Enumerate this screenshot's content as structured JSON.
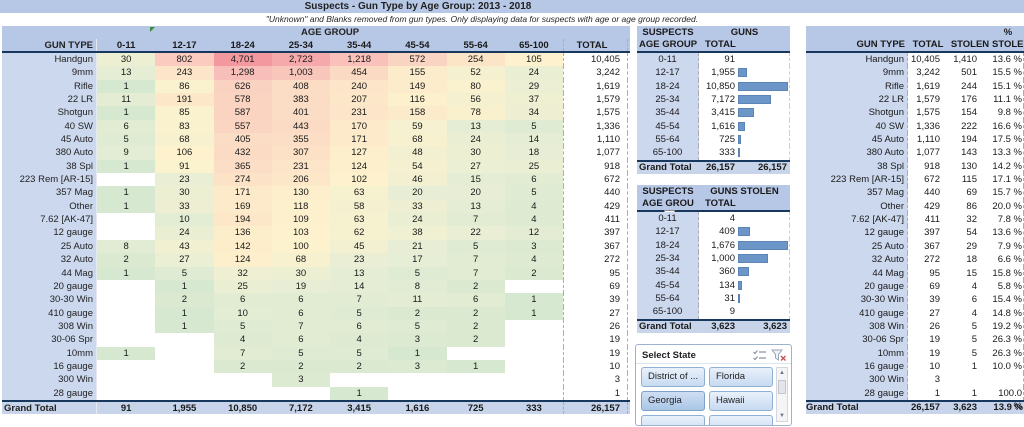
{
  "title": "Suspects - Gun Type by Age Group: 2013 - 2018",
  "subtitle": "\"Unknown\" and Blanks removed from gun types. Only displaying data for suspects with age or age group recorded.",
  "age_groups": [
    "0-11",
    "12-17",
    "18-24",
    "25-34",
    "35-44",
    "45-54",
    "55-64",
    "65-100"
  ],
  "main_table": {
    "header_group": "AGE GROUP",
    "col_label": "GUN TYPE",
    "col_total": "TOTAL",
    "grand_total_label": "Grand Total",
    "rows": [
      {
        "label": "Handgun",
        "values": [
          30,
          802,
          4701,
          2723,
          1218,
          572,
          254,
          105
        ],
        "total": 10405
      },
      {
        "label": "9mm",
        "values": [
          13,
          243,
          1298,
          1003,
          454,
          155,
          52,
          24
        ],
        "total": 3242
      },
      {
        "label": "Rifle",
        "values": [
          1,
          86,
          626,
          408,
          240,
          149,
          80,
          29
        ],
        "total": 1619
      },
      {
        "label": "22 LR",
        "values": [
          11,
          191,
          578,
          383,
          207,
          116,
          56,
          37
        ],
        "total": 1579
      },
      {
        "label": "Shotgun",
        "values": [
          1,
          85,
          587,
          401,
          231,
          158,
          78,
          34
        ],
        "total": 1575
      },
      {
        "label": "40 SW",
        "values": [
          6,
          83,
          557,
          443,
          170,
          59,
          13,
          5
        ],
        "total": 1336
      },
      {
        "label": "45 Auto",
        "values": [
          5,
          68,
          405,
          355,
          171,
          68,
          24,
          14
        ],
        "total": 1110
      },
      {
        "label": "380 Auto",
        "values": [
          9,
          106,
          432,
          307,
          127,
          48,
          30,
          18
        ],
        "total": 1077
      },
      {
        "label": "38 Spl",
        "values": [
          1,
          91,
          365,
          231,
          124,
          54,
          27,
          25
        ],
        "total": 918
      },
      {
        "label": "223 Rem [AR-15]",
        "values": [
          null,
          23,
          274,
          206,
          102,
          46,
          15,
          6
        ],
        "total": 672
      },
      {
        "label": "357 Mag",
        "values": [
          1,
          30,
          171,
          130,
          63,
          20,
          20,
          5
        ],
        "total": 440
      },
      {
        "label": "Other",
        "values": [
          1,
          33,
          169,
          118,
          58,
          33,
          13,
          4
        ],
        "total": 429
      },
      {
        "label": "7.62 [AK-47]",
        "values": [
          null,
          10,
          194,
          109,
          63,
          24,
          7,
          4
        ],
        "total": 411
      },
      {
        "label": "12 gauge",
        "values": [
          null,
          24,
          136,
          103,
          62,
          38,
          22,
          12
        ],
        "total": 397
      },
      {
        "label": "25 Auto",
        "values": [
          8,
          43,
          142,
          100,
          45,
          21,
          5,
          3
        ],
        "total": 367
      },
      {
        "label": "32 Auto",
        "values": [
          2,
          27,
          124,
          68,
          23,
          17,
          7,
          4
        ],
        "total": 272
      },
      {
        "label": "44 Mag",
        "values": [
          1,
          5,
          32,
          30,
          13,
          5,
          7,
          2
        ],
        "total": 95
      },
      {
        "label": "20 gauge",
        "values": [
          null,
          1,
          25,
          19,
          14,
          8,
          2,
          null
        ],
        "total": 69
      },
      {
        "label": "30-30 Win",
        "values": [
          null,
          2,
          6,
          6,
          7,
          11,
          6,
          1
        ],
        "total": 39
      },
      {
        "label": "410 gauge",
        "values": [
          null,
          1,
          10,
          6,
          5,
          2,
          2,
          1
        ],
        "total": 27
      },
      {
        "label": "308 Win",
        "values": [
          null,
          1,
          5,
          7,
          6,
          5,
          2,
          null
        ],
        "total": 26
      },
      {
        "label": "30-06 Spr",
        "values": [
          null,
          null,
          4,
          6,
          4,
          3,
          2,
          null
        ],
        "total": 19
      },
      {
        "label": "10mm",
        "values": [
          1,
          null,
          7,
          5,
          5,
          1,
          null,
          null
        ],
        "total": 19
      },
      {
        "label": "16 gauge",
        "values": [
          null,
          null,
          2,
          2,
          2,
          3,
          1,
          null
        ],
        "total": 10
      },
      {
        "label": "300 Win",
        "values": [
          null,
          null,
          null,
          3,
          null,
          null,
          null,
          null
        ],
        "total": 3
      },
      {
        "label": "28 gauge",
        "values": [
          null,
          null,
          null,
          null,
          1,
          null,
          null,
          null
        ],
        "total": 1
      }
    ],
    "grand_total": {
      "values": [
        91,
        1955,
        10850,
        7172,
        3415,
        1616,
        725,
        333
      ],
      "total": 26157
    }
  },
  "suspects_guns": {
    "title_left": "SUSPECTS",
    "title_right": "GUNS",
    "col_left": "AGE GROUP",
    "col_right": "TOTAL",
    "rows": [
      {
        "age": "0-11",
        "total": 91
      },
      {
        "age": "12-17",
        "total": 1955
      },
      {
        "age": "18-24",
        "total": 10850
      },
      {
        "age": "25-34",
        "total": 7172
      },
      {
        "age": "35-44",
        "total": 3415
      },
      {
        "age": "45-54",
        "total": 1616
      },
      {
        "age": "55-64",
        "total": 725
      },
      {
        "age": "65-100",
        "total": 333
      }
    ],
    "grand_total_label": "Grand Total",
    "grand_total": 26157,
    "grand_total_right": 26157
  },
  "suspects_guns_stolen": {
    "title_left": "SUSPECTS",
    "title_right": "GUNS STOLEN",
    "col_left": "AGE GROU",
    "col_right": "TOTAL",
    "rows": [
      {
        "age": "0-11",
        "total": 4
      },
      {
        "age": "12-17",
        "total": 409
      },
      {
        "age": "18-24",
        "total": 1676
      },
      {
        "age": "25-34",
        "total": 1000
      },
      {
        "age": "35-44",
        "total": 360
      },
      {
        "age": "45-54",
        "total": 134
      },
      {
        "age": "55-64",
        "total": 31
      },
      {
        "age": "65-100",
        "total": 9
      }
    ],
    "grand_total_label": "Grand Total",
    "grand_total": 3623,
    "grand_total_right": 3623
  },
  "slicer": {
    "title": "Select State",
    "buttons": [
      {
        "label": "District of ...",
        "selected": false
      },
      {
        "label": "Florida",
        "selected": false
      },
      {
        "label": "Georgia",
        "selected": true
      },
      {
        "label": "Hawaii",
        "selected": false
      },
      {
        "label": "",
        "selected": false
      },
      {
        "label": "",
        "selected": false
      }
    ]
  },
  "stolen_table": {
    "pct_header_top": "%",
    "col_label": "GUN TYPE",
    "col_total": "TOTAL",
    "col_stolen": "STOLEN",
    "col_pct": "STOLEN",
    "grand_total": {
      "label": "Grand Total",
      "total": 26157,
      "stolen": 3623,
      "pct": "13.9 %"
    },
    "rows": [
      {
        "label": "Handgun",
        "total": 10405,
        "stolen": 1410,
        "pct": "13.6 %"
      },
      {
        "label": "9mm",
        "total": 3242,
        "stolen": 501,
        "pct": "15.5 %"
      },
      {
        "label": "Rifle",
        "total": 1619,
        "stolen": 244,
        "pct": "15.1 %"
      },
      {
        "label": "22 LR",
        "total": 1579,
        "stolen": 176,
        "pct": "11.1 %"
      },
      {
        "label": "Shotgun",
        "total": 1575,
        "stolen": 154,
        "pct": "9.8 %"
      },
      {
        "label": "40 SW",
        "total": 1336,
        "stolen": 222,
        "pct": "16.6 %"
      },
      {
        "label": "45 Auto",
        "total": 1110,
        "stolen": 194,
        "pct": "17.5 %"
      },
      {
        "label": "380 Auto",
        "total": 1077,
        "stolen": 143,
        "pct": "13.3 %"
      },
      {
        "label": "38 Spl",
        "total": 918,
        "stolen": 130,
        "pct": "14.2 %"
      },
      {
        "label": "223 Rem [AR-15]",
        "total": 672,
        "stolen": 115,
        "pct": "17.1 %"
      },
      {
        "label": "357 Mag",
        "total": 440,
        "stolen": 69,
        "pct": "15.7 %"
      },
      {
        "label": "Other",
        "total": 429,
        "stolen": 86,
        "pct": "20.0 %"
      },
      {
        "label": "7.62 [AK-47]",
        "total": 411,
        "stolen": 32,
        "pct": "7.8 %"
      },
      {
        "label": "12 gauge",
        "total": 397,
        "stolen": 54,
        "pct": "13.6 %"
      },
      {
        "label": "25 Auto",
        "total": 367,
        "stolen": 29,
        "pct": "7.9 %"
      },
      {
        "label": "32 Auto",
        "total": 272,
        "stolen": 18,
        "pct": "6.6 %"
      },
      {
        "label": "44 Mag",
        "total": 95,
        "stolen": 15,
        "pct": "15.8 %"
      },
      {
        "label": "20 gauge",
        "total": 69,
        "stolen": 4,
        "pct": "5.8 %"
      },
      {
        "label": "30-30 Win",
        "total": 39,
        "stolen": 6,
        "pct": "15.4 %"
      },
      {
        "label": "410 gauge",
        "total": 27,
        "stolen": 4,
        "pct": "14.8 %"
      },
      {
        "label": "308 Win",
        "total": 26,
        "stolen": 5,
        "pct": "19.2 %"
      },
      {
        "label": "30-06 Spr",
        "total": 19,
        "stolen": 5,
        "pct": "26.3 %"
      },
      {
        "label": "10mm",
        "total": 19,
        "stolen": 5,
        "pct": "26.3 %"
      },
      {
        "label": "16 gauge",
        "total": 10,
        "stolen": 1,
        "pct": "10.0 %"
      },
      {
        "label": "300 Win",
        "total": 3,
        "stolen": null,
        "pct": ""
      },
      {
        "label": "28 gauge",
        "total": 1,
        "stolen": 1,
        "pct": "100.0 %"
      }
    ]
  },
  "colors": {
    "header_blue": "#b7c7e6",
    "label_blue": "#ccd8ee",
    "grand_total_blue": "#c7d4ea",
    "dark_line": "#17375d",
    "bar_blue": "#6d96c8",
    "heat_min_green": "#d7e8d0",
    "heat_mid_cream": "#fdf2cd",
    "heat_max_red": "#f2989e",
    "slicer_selected": "#aac6e6"
  }
}
